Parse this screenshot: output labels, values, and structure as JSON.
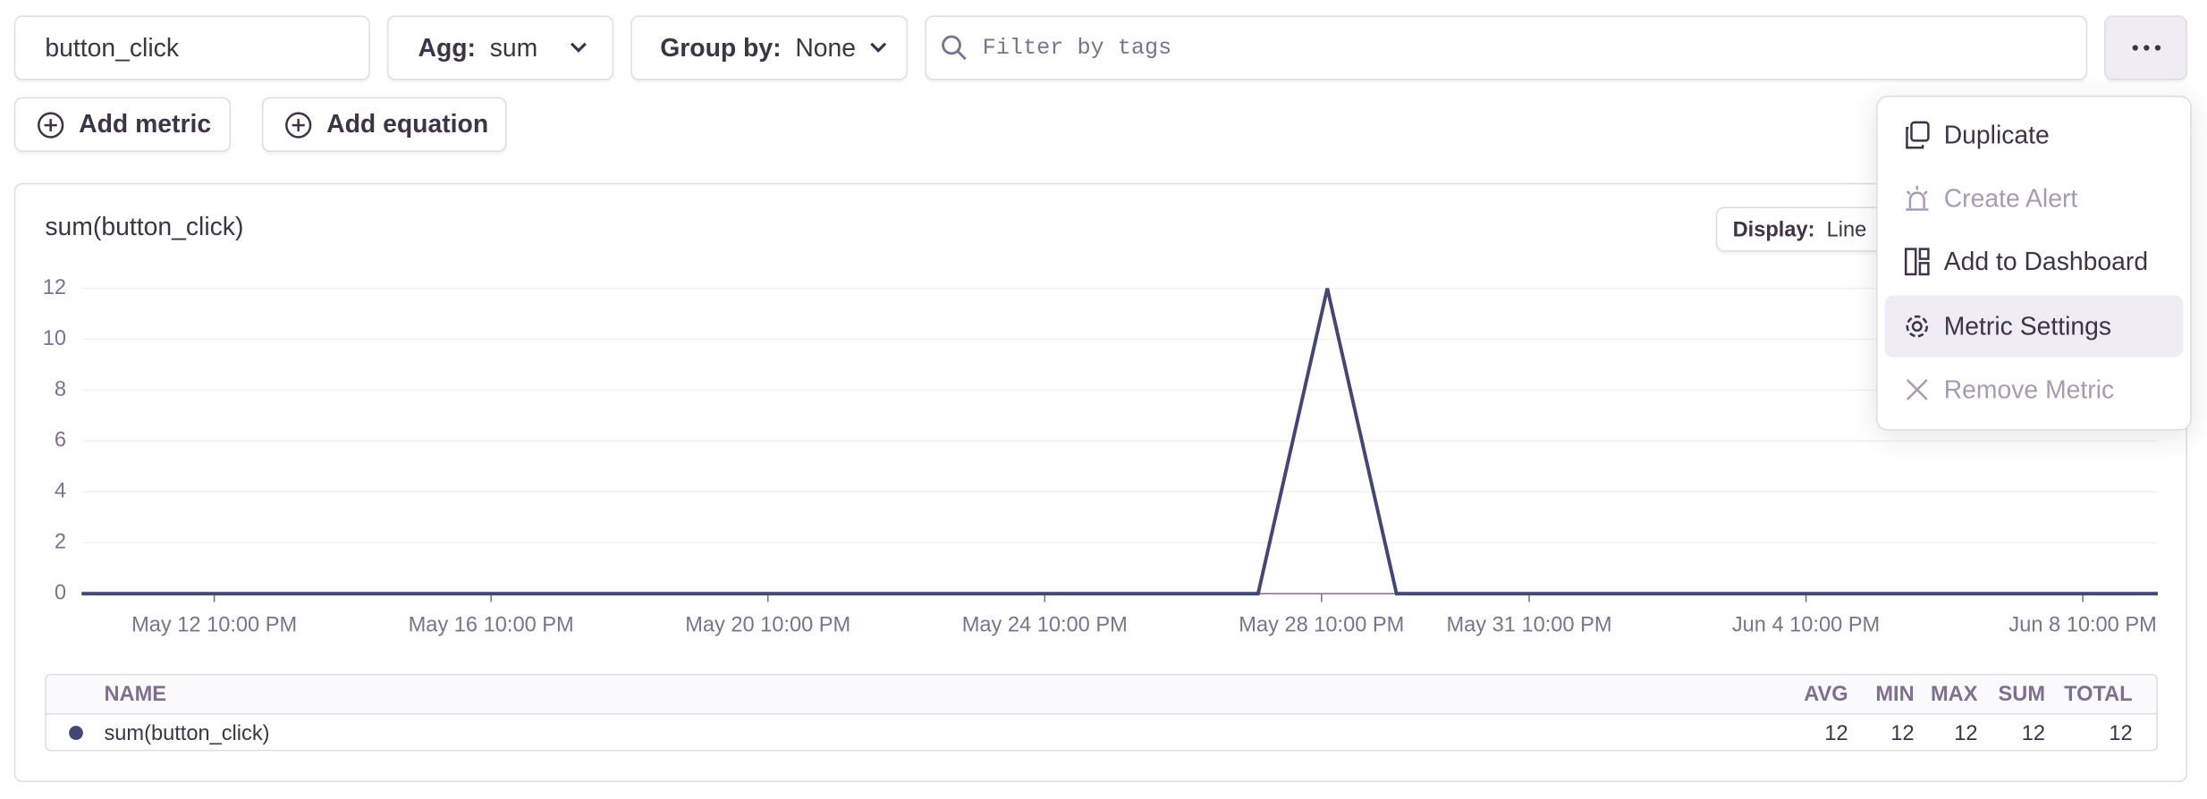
{
  "toolbar": {
    "metric": "button_click",
    "agg_label": "Agg:",
    "agg_value": "sum",
    "group_label": "Group by:",
    "group_value": "None",
    "filter_placeholder": "Filter by tags"
  },
  "actions": [
    "Add metric",
    "Add equation"
  ],
  "display": {
    "label": "Display:",
    "value": "Line"
  },
  "menu": [
    "Duplicate",
    "Create Alert",
    "Add to Dashboard",
    "Metric Settings",
    "Remove Metric"
  ],
  "chart_data": {
    "type": "line",
    "title": "sum(button_click)",
    "x": [
      "May 11 12:00 AM",
      "May 12 12:00 AM",
      "May 13 12:00 AM",
      "May 14 12:00 AM",
      "May 15 12:00 AM",
      "May 16 12:00 AM",
      "May 17 12:00 AM",
      "May 18 12:00 AM",
      "May 19 12:00 AM",
      "May 20 12:00 AM",
      "May 21 12:00 AM",
      "May 22 12:00 AM",
      "May 23 12:00 AM",
      "May 24 12:00 AM",
      "May 25 12:00 AM",
      "May 26 12:00 AM",
      "May 27 12:00 AM",
      "May 28 12:00 AM",
      "May 29 12:00 AM",
      "May 30 12:00 AM",
      "May 31 12:00 AM",
      "Jun 1 12:00 AM",
      "Jun 2 12:00 AM",
      "Jun 3 12:00 AM",
      "Jun 4 12:00 AM",
      "Jun 5 12:00 AM",
      "Jun 6 12:00 AM",
      "Jun 7 12:00 AM",
      "Jun 8 12:00 AM",
      "Jun 9 12:00 AM",
      "Jun 10 12:00 AM"
    ],
    "series": [
      {
        "name": "sum(button_click)",
        "color": "#444674",
        "values": [
          0,
          0,
          0,
          0,
          0,
          0,
          0,
          0,
          0,
          0,
          0,
          0,
          0,
          0,
          0,
          0,
          0,
          0,
          12,
          0,
          0,
          0,
          0,
          0,
          0,
          0,
          0,
          0,
          0,
          0,
          0
        ]
      }
    ],
    "xlim": [
      "May 11 12:00 AM",
      "Jun 10 12:00 AM"
    ],
    "xticks": [
      "May 12 10:00 PM",
      "May 16 10:00 PM",
      "May 20 10:00 PM",
      "May 24 10:00 PM",
      "May 28 10:00 PM",
      "May 31 10:00 PM",
      "Jun 4 10:00 PM",
      "Jun 8 10:00 PM"
    ],
    "ylim": [
      0,
      12
    ],
    "yticks": [
      0,
      2,
      4,
      6,
      8,
      10,
      12
    ],
    "grid": true
  },
  "legend": {
    "columns": [
      "NAME",
      "AVG",
      "MIN",
      "MAX",
      "SUM",
      "TOTAL"
    ],
    "stats": [
      12,
      12,
      12,
      12,
      12
    ]
  }
}
